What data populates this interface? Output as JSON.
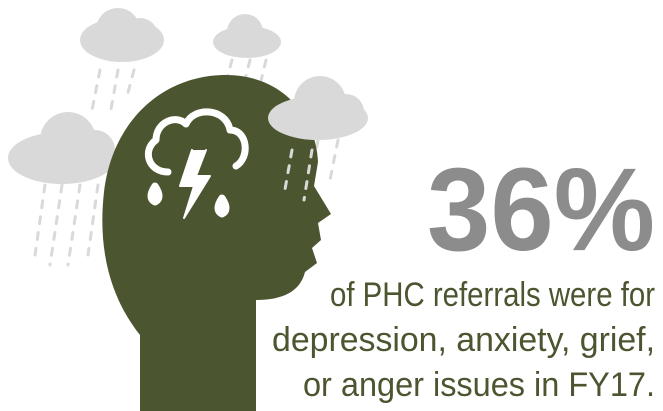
{
  "stat": "36%",
  "caption": [
    "of PHC referrals were for",
    "depression, anxiety, grief,",
    "or anger issues in FY17."
  ]
}
